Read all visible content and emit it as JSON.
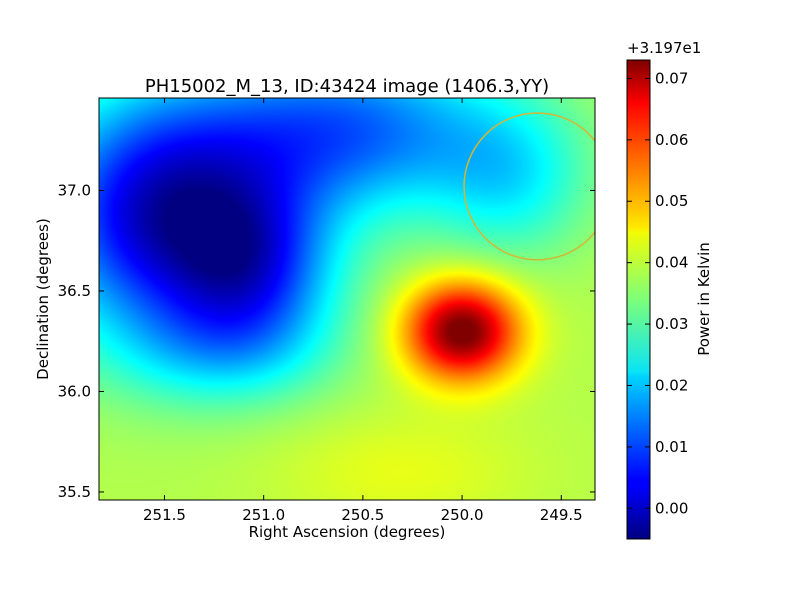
{
  "chart_data": {
    "type": "heatmap",
    "title": "PH15002_M_13, ID:43424 image (1406.3,YY)",
    "xlabel": "Right Ascension (degrees)",
    "ylabel": "Declination (degrees)",
    "xlim": [
      251.83,
      249.33
    ],
    "ylim": [
      35.46,
      37.46
    ],
    "x_ticks": [
      251.5,
      251.0,
      250.5,
      250.0,
      249.5
    ],
    "x_tick_labels": [
      "251.5",
      "251.0",
      "250.5",
      "250.0",
      "249.5"
    ],
    "y_ticks": [
      35.5,
      36.0,
      36.5,
      37.0
    ],
    "y_tick_labels": [
      "35.5",
      "36.0",
      "36.5",
      "37.0"
    ],
    "grid": false,
    "colormap": "jet",
    "colorbar": {
      "label": "Power in Kelvin",
      "offset_text": "+3.197e1",
      "range": [
        -0.005,
        0.073
      ],
      "ticks": [
        0.0,
        0.01,
        0.02,
        0.03,
        0.04,
        0.05,
        0.06,
        0.07
      ],
      "tick_labels": [
        "0.00",
        "0.01",
        "0.02",
        "0.03",
        "0.04",
        "0.05",
        "0.06",
        "0.07"
      ]
    },
    "field": {
      "base": 0.038,
      "components": [
        {
          "kind": "peak",
          "ra": 250.0,
          "dec": 36.3,
          "amp": 0.037,
          "sigma_ra": 0.2,
          "sigma_dec": 0.17
        },
        {
          "kind": "trough",
          "ra": 251.55,
          "dec": 36.88,
          "amp": -0.035,
          "sigma_ra": 0.42,
          "sigma_dec": 0.42
        },
        {
          "kind": "trough",
          "ra": 251.05,
          "dec": 36.62,
          "amp": -0.024,
          "sigma_ra": 0.3,
          "sigma_dec": 0.3
        },
        {
          "kind": "trough",
          "ra": 250.6,
          "dec": 37.3,
          "amp": -0.026,
          "sigma_ra": 0.55,
          "sigma_dec": 0.3
        },
        {
          "kind": "trough",
          "ra": 249.75,
          "dec": 37.05,
          "amp": -0.012,
          "sigma_ra": 0.28,
          "sigma_dec": 0.28
        },
        {
          "kind": "trough",
          "ra": 251.2,
          "dec": 36.2,
          "amp": -0.01,
          "sigma_ra": 0.4,
          "sigma_dec": 0.2
        },
        {
          "kind": "peak",
          "ra": 250.3,
          "dec": 35.6,
          "amp": 0.004,
          "sigma_ra": 0.45,
          "sigma_dec": 0.2
        }
      ]
    },
    "annotations": [
      {
        "type": "circle",
        "ra": 249.62,
        "dec": 37.02,
        "radius_deg": 0.37,
        "color": "#d4b634"
      }
    ]
  }
}
